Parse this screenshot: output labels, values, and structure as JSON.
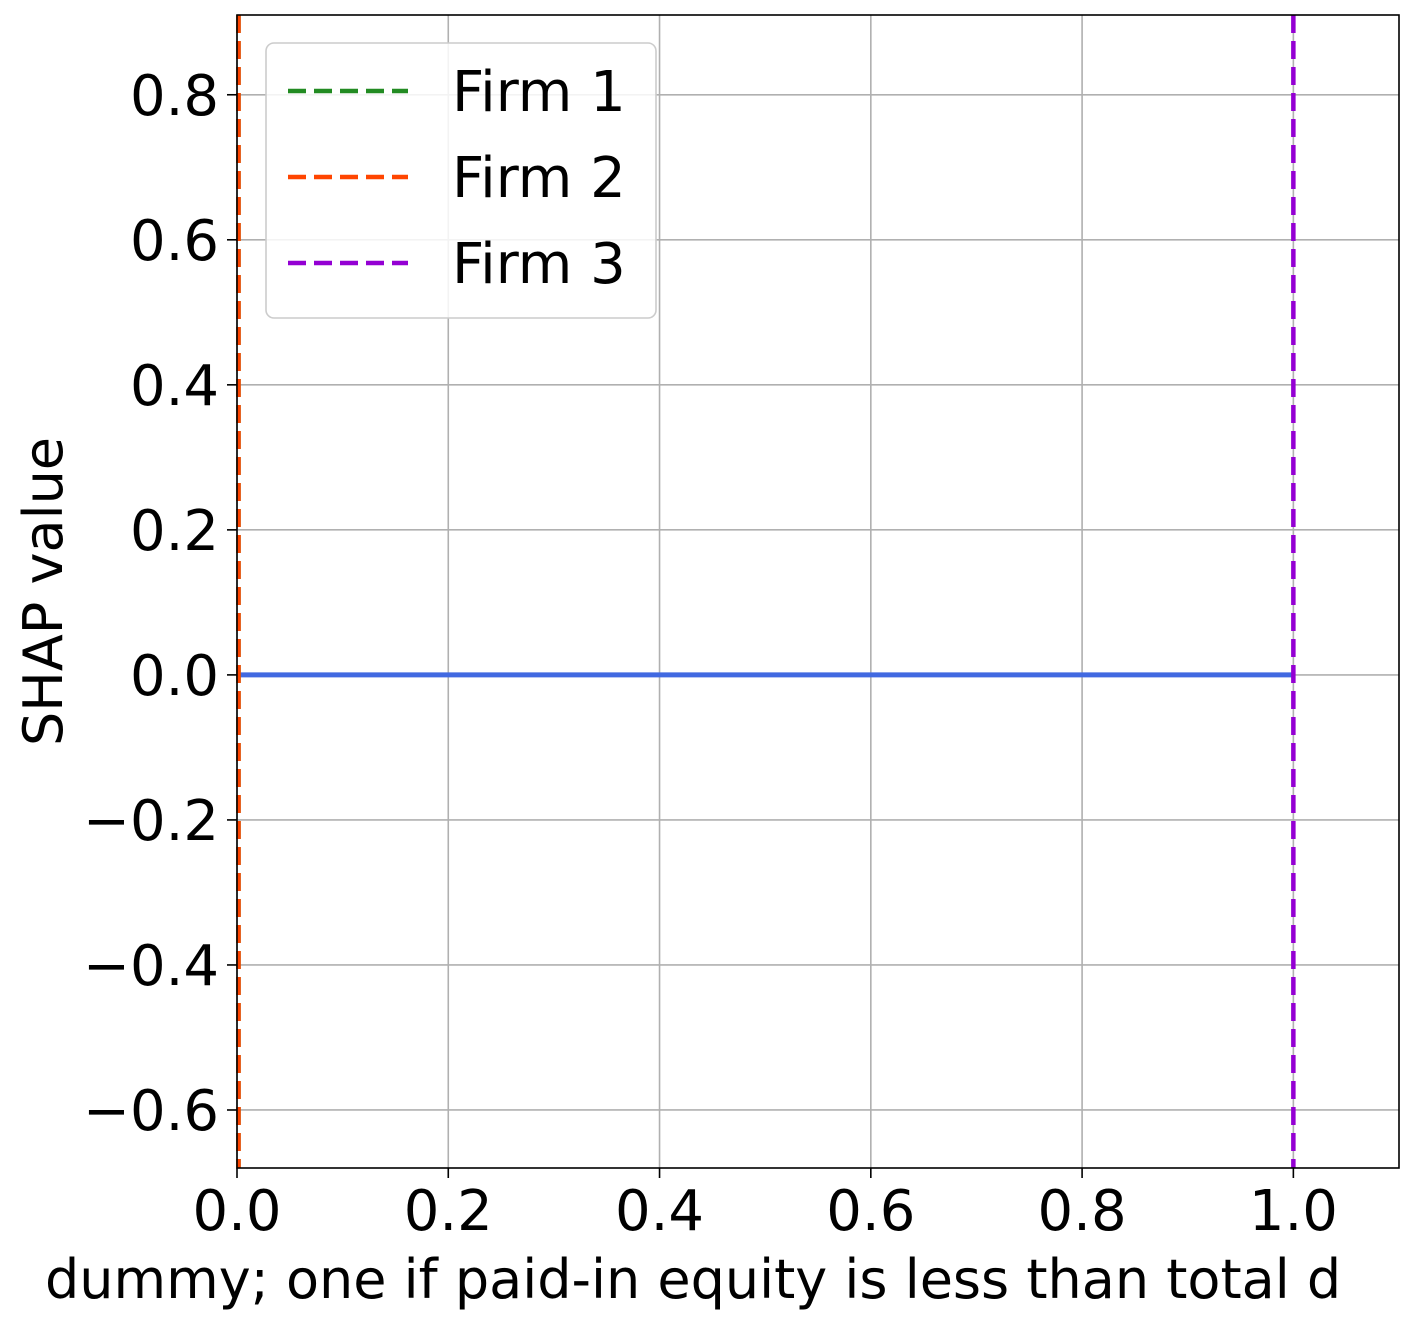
{
  "chart_data": {
    "type": "line",
    "xlabel": "dummy; one if paid-in equity is less than total d",
    "ylabel": "SHAP value",
    "xlim": [
      0.0,
      1.1
    ],
    "ylim": [
      -0.68,
      0.91
    ],
    "x_ticks": [
      "0.0",
      "0.2",
      "0.4",
      "0.6",
      "0.8",
      "1.0"
    ],
    "x_tick_values": [
      0.0,
      0.2,
      0.4,
      0.6,
      0.8,
      1.0
    ],
    "y_ticks": [
      "−0.6",
      "−0.4",
      "−0.2",
      "0.0",
      "0.2",
      "0.4",
      "0.6",
      "0.8"
    ],
    "y_tick_values": [
      -0.6,
      -0.4,
      -0.2,
      0.0,
      0.2,
      0.4,
      0.6,
      0.8
    ],
    "grid": true,
    "legend_position": "top-left",
    "series": [
      {
        "x": [
          0.0,
          1.0
        ],
        "y": [
          0.0,
          0.0
        ],
        "color": "#4169e1",
        "style": "solid"
      }
    ],
    "vlines": [
      {
        "name": "Firm 1",
        "x": 0.0,
        "color": "#228b22",
        "style": "dashed"
      },
      {
        "name": "Firm 2",
        "x": 0.0,
        "color": "#ff4500",
        "style": "dashed"
      },
      {
        "name": "Firm 3",
        "x": 1.0,
        "color": "#9400d3",
        "style": "dashed"
      }
    ]
  }
}
